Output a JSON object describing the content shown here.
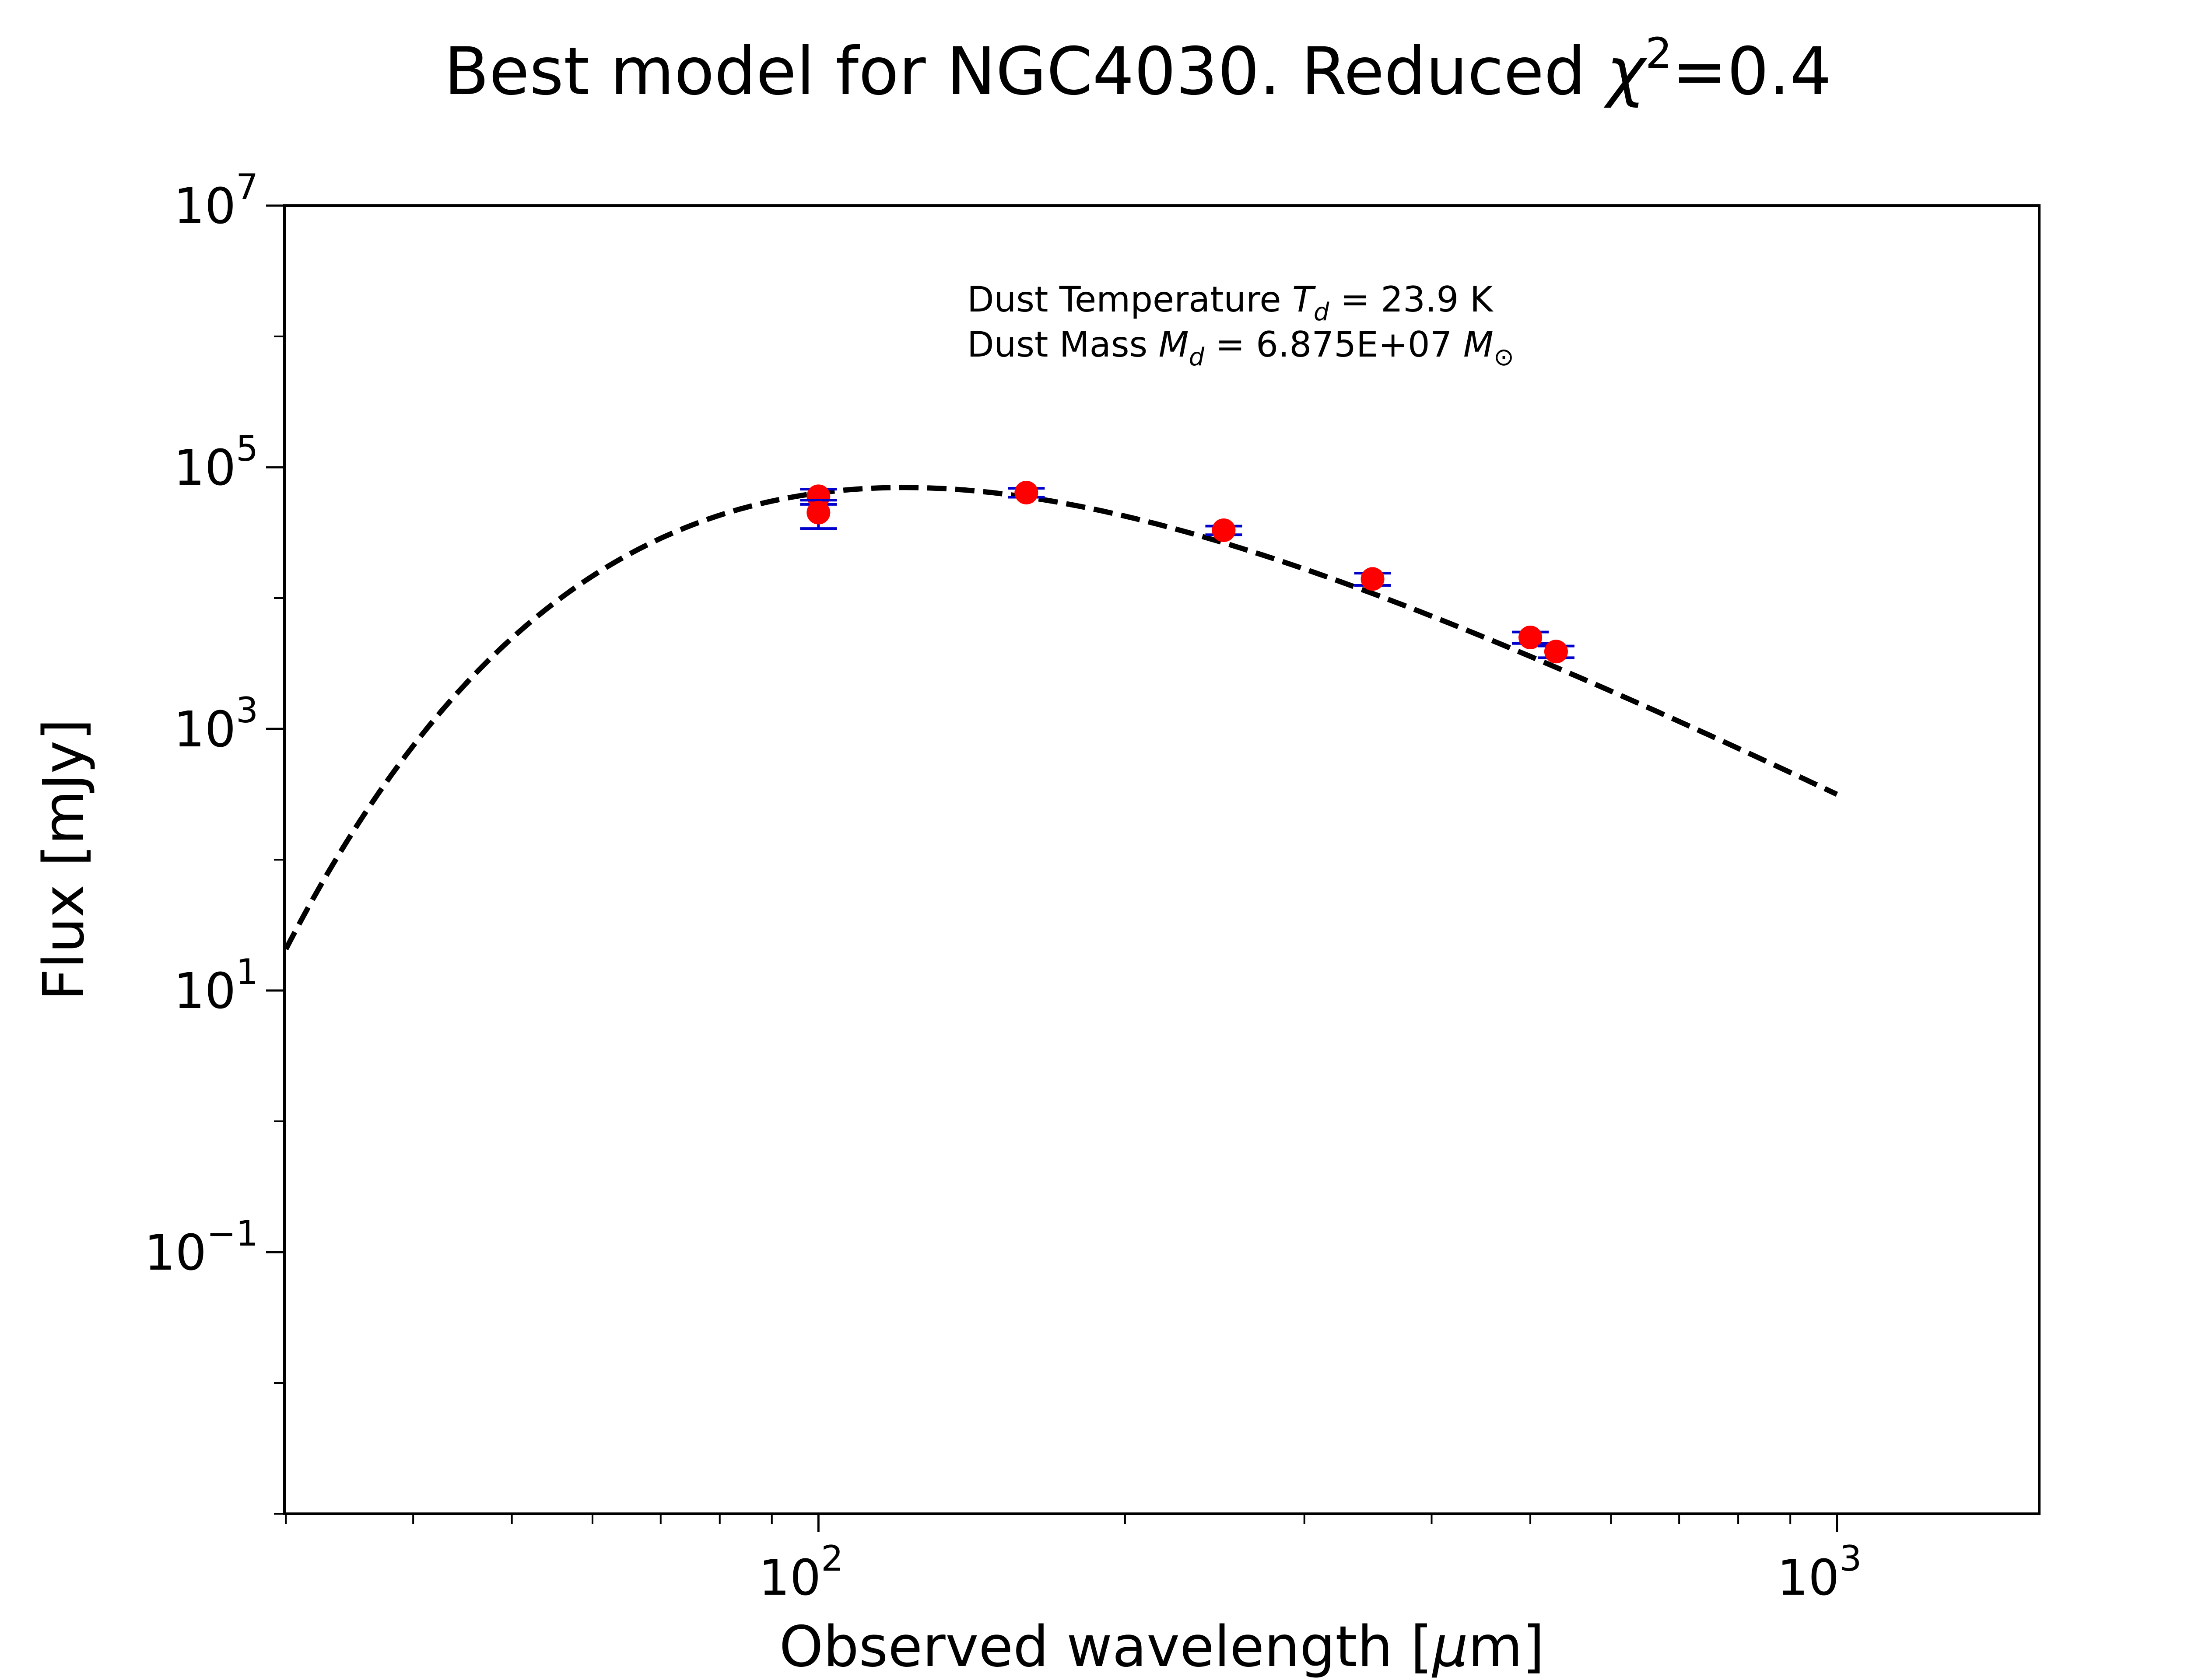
{
  "chart_data": {
    "type": "scatter",
    "title": {
      "prefix": "Best model for NGC4030. Reduced ",
      "symbol": "χ",
      "superscript": "2",
      "suffix": "=0.4"
    },
    "xlabel": {
      "prefix": "Observed wavelength [",
      "symbol": "μ",
      "suffix": "m]"
    },
    "ylabel": "Flux [mJy]",
    "xscale": "log",
    "yscale": "log",
    "xlim": [
      29.9,
      1580
    ],
    "ylim": [
      0.001,
      10000000
    ],
    "x_ticks": [
      {
        "value": 100,
        "base": "10",
        "exp": "2"
      },
      {
        "value": 1000,
        "base": "10",
        "exp": "3"
      }
    ],
    "y_ticks": [
      {
        "value": 0.1,
        "base": "10",
        "exp": "−1"
      },
      {
        "value": 10,
        "base": "10",
        "exp": "1"
      },
      {
        "value": 1000,
        "base": "10",
        "exp": "3"
      },
      {
        "value": 100000,
        "base": "10",
        "exp": "5"
      },
      {
        "value": 10000000,
        "base": "10",
        "exp": "7"
      }
    ],
    "grid": false,
    "annotations": [
      {
        "text": "Dust Temperature ",
        "var": "T",
        "sub": "d",
        "rest": " = 23.9 K"
      },
      {
        "text": "Dust Mass ",
        "var": "M",
        "sub": "d",
        "rest": " = 6.875E+07 ",
        "var2": "M",
        "sub2": "⊙"
      }
    ],
    "model": {
      "style": "dashed",
      "color": "#000000",
      "temperature_K": 23.9,
      "beta": 2,
      "peak_flux": 70000,
      "x_range": [
        30,
        1000
      ]
    },
    "observations": {
      "marker_color": "#ff0000",
      "errorbar_color": "#0000cc",
      "points": [
        {
          "x": 100,
          "y": 60000,
          "yerr_low": 8000,
          "yerr_high": 8000
        },
        {
          "x": 100,
          "y": 45000,
          "yerr_low": 11000,
          "yerr_high": 11000
        },
        {
          "x": 160,
          "y": 64000,
          "yerr_low": 5000,
          "yerr_high": 5000
        },
        {
          "x": 250,
          "y": 33000,
          "yerr_low": 2500,
          "yerr_high": 2500
        },
        {
          "x": 350,
          "y": 14000,
          "yerr_low": 1500,
          "yerr_high": 1500
        },
        {
          "x": 500,
          "y": 5000,
          "yerr_low": 500,
          "yerr_high": 500
        },
        {
          "x": 530,
          "y": 3900,
          "yerr_low": 400,
          "yerr_high": 400
        }
      ]
    }
  }
}
